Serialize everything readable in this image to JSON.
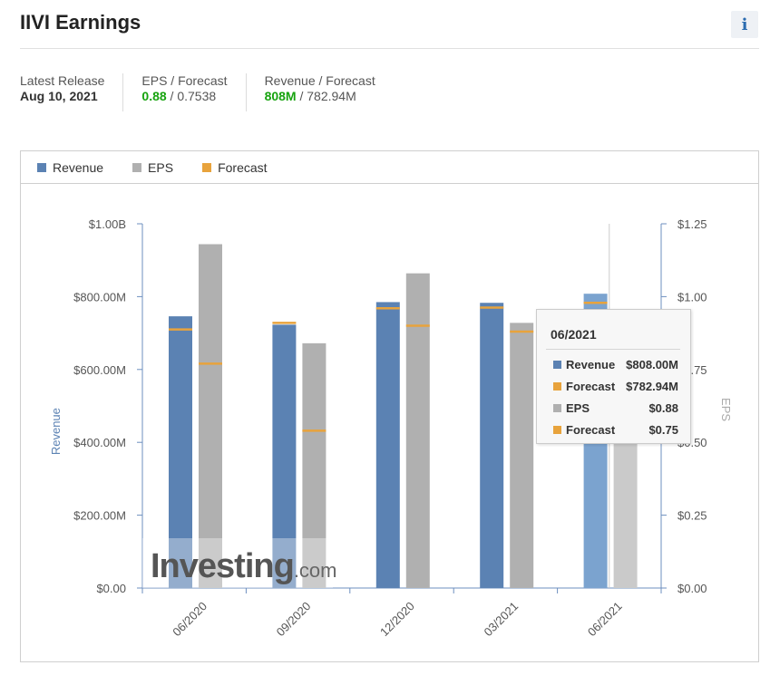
{
  "header": {
    "title": "IIVI Earnings",
    "info_icon": "i"
  },
  "summary": {
    "latest_release_label": "Latest Release",
    "latest_release_value": "Aug 10, 2021",
    "eps_label": "EPS / Forecast",
    "eps_actual": "0.88",
    "eps_sep": " / ",
    "eps_forecast": "0.7538",
    "rev_label": "Revenue / Forecast",
    "rev_actual": "808M",
    "rev_sep": " / ",
    "rev_forecast": "782.94M"
  },
  "legend": [
    {
      "label": "Revenue",
      "color": "#5b82b3"
    },
    {
      "label": "EPS",
      "color": "#b0b0b0"
    },
    {
      "label": "Forecast",
      "color": "#e8a33c"
    }
  ],
  "tooltip": {
    "title": "06/2021",
    "rows": [
      {
        "label": "Revenue",
        "value": "$808.00M",
        "color": "#5b82b3"
      },
      {
        "label": "Forecast",
        "value": "$782.94M",
        "color": "#e8a33c"
      },
      {
        "label": "EPS",
        "value": "$0.88",
        "color": "#b0b0b0"
      },
      {
        "label": "Forecast",
        "value": "$0.75",
        "color": "#e8a33c"
      }
    ]
  },
  "watermark": {
    "main": "Investing",
    "suffix": ".com"
  },
  "chart_data": {
    "type": "bar",
    "categories": [
      "06/2020",
      "09/2020",
      "12/2020",
      "03/2021",
      "06/2021"
    ],
    "series": [
      {
        "name": "Revenue",
        "axis": "left",
        "values": [
          746,
          723,
          785,
          783,
          808
        ]
      },
      {
        "name": "EPS",
        "axis": "right",
        "values": [
          1.18,
          0.84,
          1.08,
          0.91,
          0.88
        ]
      }
    ],
    "forecast": {
      "revenue": [
        710,
        728,
        768,
        770,
        782.94
      ],
      "eps": [
        0.77,
        0.54,
        0.9,
        0.88,
        0.75
      ]
    },
    "left_axis": {
      "label": "Revenue",
      "ylim": [
        0,
        1000
      ],
      "ticks": [
        "$0.00",
        "$200.00M",
        "$400.00M",
        "$600.00M",
        "$800.00M",
        "$1.00B"
      ]
    },
    "right_axis": {
      "label": "EPS",
      "ylim": [
        0,
        1.25
      ],
      "ticks": [
        "$0.00",
        "$0.25",
        "$0.50",
        "$0.75",
        "$1.00",
        "$1.25"
      ]
    },
    "highlighted_category": "06/2021",
    "colors": {
      "revenue": "#5b82b3",
      "revenue_highlight": "#7ba3cf",
      "eps": "#b0b0b0",
      "eps_highlight": "#cacaca",
      "forecast": "#e8a33c"
    }
  }
}
